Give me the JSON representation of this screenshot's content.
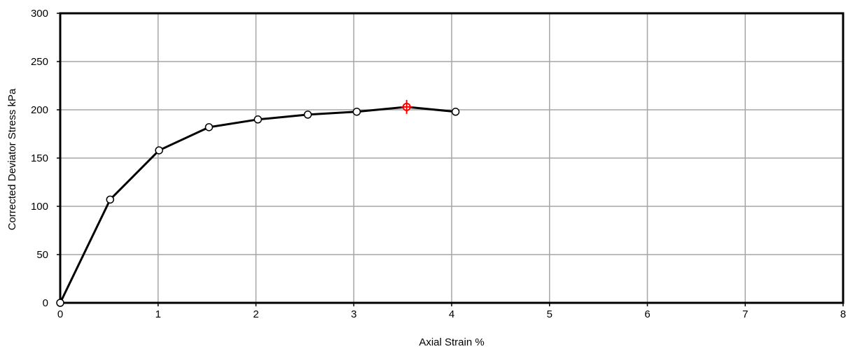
{
  "chart_data": {
    "type": "line",
    "title": "",
    "xlabel": "Axial Strain  %",
    "ylabel": "Corrected Deviator Stress  kPa",
    "xlim": [
      0,
      8
    ],
    "ylim": [
      0,
      300
    ],
    "x_ticks": [
      0,
      1,
      2,
      3,
      4,
      5,
      6,
      7,
      8
    ],
    "y_ticks": [
      0,
      50,
      100,
      150,
      200,
      250,
      300
    ],
    "grid": true,
    "series": [
      {
        "x": [
          0,
          0.51,
          1.01,
          1.52,
          2.02,
          2.53,
          3.03,
          3.54,
          4.04
        ],
        "y": [
          0,
          107,
          158,
          182,
          190,
          195,
          198,
          203,
          198
        ],
        "color": "#000000",
        "marker": "circle-open"
      }
    ],
    "peak": {
      "x": 3.54,
      "y": 203,
      "color": "#ff0000",
      "marker": "crosshair-circle"
    }
  }
}
